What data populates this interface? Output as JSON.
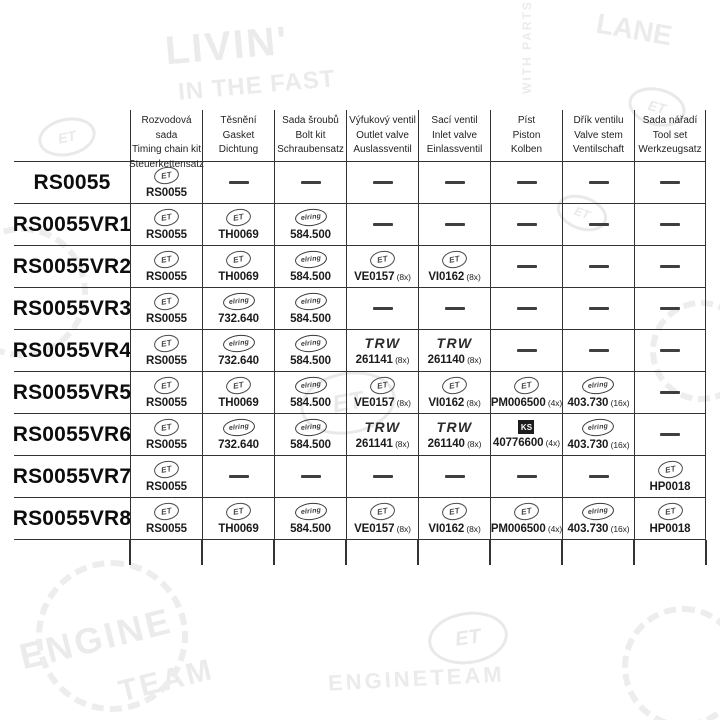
{
  "logos": {
    "et": "ET",
    "elring": "elring",
    "trw": "TRW",
    "ks": "KS"
  },
  "background": {
    "watermarks": [
      "LIVIN'",
      "IN THE FAST",
      "LANE",
      "WITH PARTS",
      "ET",
      "ENGINE",
      "TEAM",
      "ENGINETEAM"
    ]
  },
  "table": {
    "dash": "—",
    "columns": [
      {
        "lines": [
          "Rozvodová sada",
          "Timing chain kit",
          "Steuerkettensatz"
        ]
      },
      {
        "lines": [
          "Těsnění",
          "Gasket",
          "Dichtung"
        ]
      },
      {
        "lines": [
          "Sada šroubů",
          "Bolt kit",
          "Schraubensatz"
        ]
      },
      {
        "lines": [
          "Výfukový ventil",
          "Outlet valve",
          "Auslassventil"
        ]
      },
      {
        "lines": [
          "Sací ventil",
          "Inlet valve",
          "Einlassventil"
        ]
      },
      {
        "lines": [
          "Píst",
          "Piston",
          "Kolben"
        ]
      },
      {
        "lines": [
          "Dřík ventilu",
          "Valve stem",
          "Ventilschaft"
        ]
      },
      {
        "lines": [
          "Sada nářadí",
          "Tool set",
          "Werkzeugsatz"
        ]
      }
    ],
    "rows": [
      {
        "label": "RS0055",
        "cells": [
          {
            "logo": "et",
            "part": "RS0055"
          },
          {
            "dash": true
          },
          {
            "dash": true
          },
          {
            "dash": true
          },
          {
            "dash": true
          },
          {
            "dash": true
          },
          {
            "dash": true
          },
          {
            "dash": true
          }
        ]
      },
      {
        "label": "RS0055VR1",
        "cells": [
          {
            "logo": "et",
            "part": "RS0055"
          },
          {
            "logo": "et",
            "part": "TH0069"
          },
          {
            "logo": "elring",
            "part": "584.500"
          },
          {
            "dash": true
          },
          {
            "dash": true
          },
          {
            "dash": true
          },
          {
            "dash": true
          },
          {
            "dash": true
          }
        ]
      },
      {
        "label": "RS0055VR2",
        "cells": [
          {
            "logo": "et",
            "part": "RS0055"
          },
          {
            "logo": "et",
            "part": "TH0069"
          },
          {
            "logo": "elring",
            "part": "584.500"
          },
          {
            "logo": "et",
            "part": "VE0157",
            "qty": "(8x)"
          },
          {
            "logo": "et",
            "part": "VI0162",
            "qty": "(8x)"
          },
          {
            "dash": true
          },
          {
            "dash": true
          },
          {
            "dash": true
          }
        ]
      },
      {
        "label": "RS0055VR3",
        "cells": [
          {
            "logo": "et",
            "part": "RS0055"
          },
          {
            "logo": "elring",
            "part": "732.640"
          },
          {
            "logo": "elring",
            "part": "584.500"
          },
          {
            "dash": true
          },
          {
            "dash": true
          },
          {
            "dash": true
          },
          {
            "dash": true
          },
          {
            "dash": true
          }
        ]
      },
      {
        "label": "RS0055VR4",
        "cells": [
          {
            "logo": "et",
            "part": "RS0055"
          },
          {
            "logo": "elring",
            "part": "732.640"
          },
          {
            "logo": "elring",
            "part": "584.500"
          },
          {
            "logo": "trw",
            "part": "261141",
            "qty": "(8x)"
          },
          {
            "logo": "trw",
            "part": "261140",
            "qty": "(8x)"
          },
          {
            "dash": true
          },
          {
            "dash": true
          },
          {
            "dash": true
          }
        ]
      },
      {
        "label": "RS0055VR5",
        "cells": [
          {
            "logo": "et",
            "part": "RS0055"
          },
          {
            "logo": "et",
            "part": "TH0069"
          },
          {
            "logo": "elring",
            "part": "584.500"
          },
          {
            "logo": "et",
            "part": "VE0157",
            "qty": "(8x)"
          },
          {
            "logo": "et",
            "part": "VI0162",
            "qty": "(8x)"
          },
          {
            "logo": "et",
            "part": "PM006500",
            "qty": "(4x)"
          },
          {
            "logo": "elring",
            "part": "403.730",
            "qty": "(16x)"
          },
          {
            "dash": true
          }
        ]
      },
      {
        "label": "RS0055VR6",
        "cells": [
          {
            "logo": "et",
            "part": "RS0055"
          },
          {
            "logo": "elring",
            "part": "732.640"
          },
          {
            "logo": "elring",
            "part": "584.500"
          },
          {
            "logo": "trw",
            "part": "261141",
            "qty": "(8x)"
          },
          {
            "logo": "trw",
            "part": "261140",
            "qty": "(8x)"
          },
          {
            "logo": "ks",
            "part": "40776600",
            "qty": "(4x)"
          },
          {
            "logo": "elring",
            "part": "403.730",
            "qty": "(16x)"
          },
          {
            "dash": true
          }
        ]
      },
      {
        "label": "RS0055VR7",
        "cells": [
          {
            "logo": "et",
            "part": "RS0055"
          },
          {
            "dash": true
          },
          {
            "dash": true
          },
          {
            "dash": true
          },
          {
            "dash": true
          },
          {
            "dash": true
          },
          {
            "dash": true
          },
          {
            "logo": "et",
            "part": "HP0018"
          }
        ]
      },
      {
        "label": "RS0055VR8",
        "cells": [
          {
            "logo": "et",
            "part": "RS0055"
          },
          {
            "logo": "et",
            "part": "TH0069"
          },
          {
            "logo": "elring",
            "part": "584.500"
          },
          {
            "logo": "et",
            "part": "VE0157",
            "qty": "(8x)"
          },
          {
            "logo": "et",
            "part": "VI0162",
            "qty": "(8x)"
          },
          {
            "logo": "et",
            "part": "PM006500",
            "qty": "(4x)"
          },
          {
            "logo": "elring",
            "part": "403.730",
            "qty": "(16x)"
          },
          {
            "logo": "et",
            "part": "HP0018"
          }
        ]
      }
    ]
  }
}
